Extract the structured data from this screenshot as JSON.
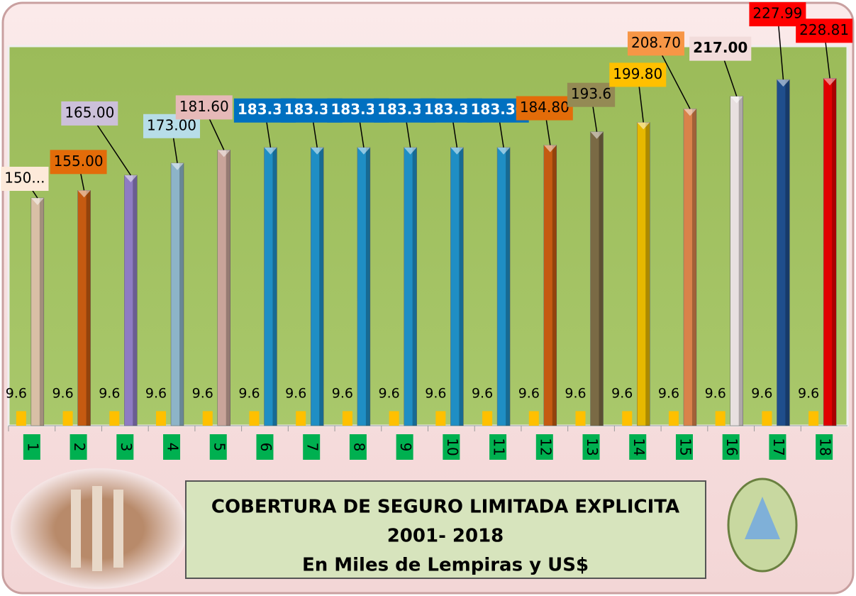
{
  "chart_data": {
    "type": "bar",
    "title_lines": [
      "COBERTURA DE SEGURO  LIMITADA  EXPLICITA",
      "2001- 2018",
      "En Miles  de Lempiras y US$"
    ],
    "categories": [
      "1",
      "2",
      "3",
      "4",
      "5",
      "6",
      "7",
      "8",
      "9",
      "10",
      "11",
      "12",
      "13",
      "14",
      "15",
      "16",
      "17",
      "18"
    ],
    "ylim": [
      0,
      250
    ],
    "series": [
      {
        "values": [
          150,
          155,
          165,
          173,
          181.6,
          183.3,
          183.3,
          183.3,
          183.3,
          183.3,
          183.3,
          184.8,
          193.6,
          199.8,
          208.7,
          217,
          227.99,
          228.81
        ],
        "value_labels": [
          "150...",
          "155.00",
          "165.00",
          "173.00",
          "181.60",
          "183.30",
          "183.30",
          "183.30",
          "183.30",
          "183.30",
          "183.30",
          "184.80",
          "193.6",
          "199.80",
          "208.70",
          "217.00",
          "227.99",
          "228.81"
        ],
        "colors": [
          "#d9bfa6",
          "#c55a11",
          "#8e7cc3",
          "#8db4c8",
          "#c9a49a",
          "#1f8ec4",
          "#1f8ec4",
          "#1f8ec4",
          "#1f8ec4",
          "#1f8ec4",
          "#1f8ec4",
          "#c55a11",
          "#7a6a45",
          "#e6b800",
          "#d9824a",
          "#e8e0e0",
          "#1f4e8c",
          "#e00000"
        ],
        "label_colors": [
          "#fdeada",
          "#e36c09",
          "#ccc0da",
          "#b7dde8",
          "#e6b9b8",
          "#0070c0",
          "#0070c0",
          "#0070c0",
          "#0070c0",
          "#0070c0",
          "#0070c0",
          "#e36c09",
          "#948a54",
          "#ffc000",
          "#f79646",
          "#f2dcdb",
          "#ff0000",
          "#ff0000"
        ]
      },
      {
        "color": "#ffc000",
        "values": [
          9.6,
          9.6,
          9.6,
          9.6,
          9.6,
          9.6,
          9.6,
          9.6,
          9.6,
          9.6,
          9.6,
          9.6,
          9.6,
          9.6,
          9.6,
          9.6,
          9.6,
          9.6
        ]
      }
    ]
  }
}
